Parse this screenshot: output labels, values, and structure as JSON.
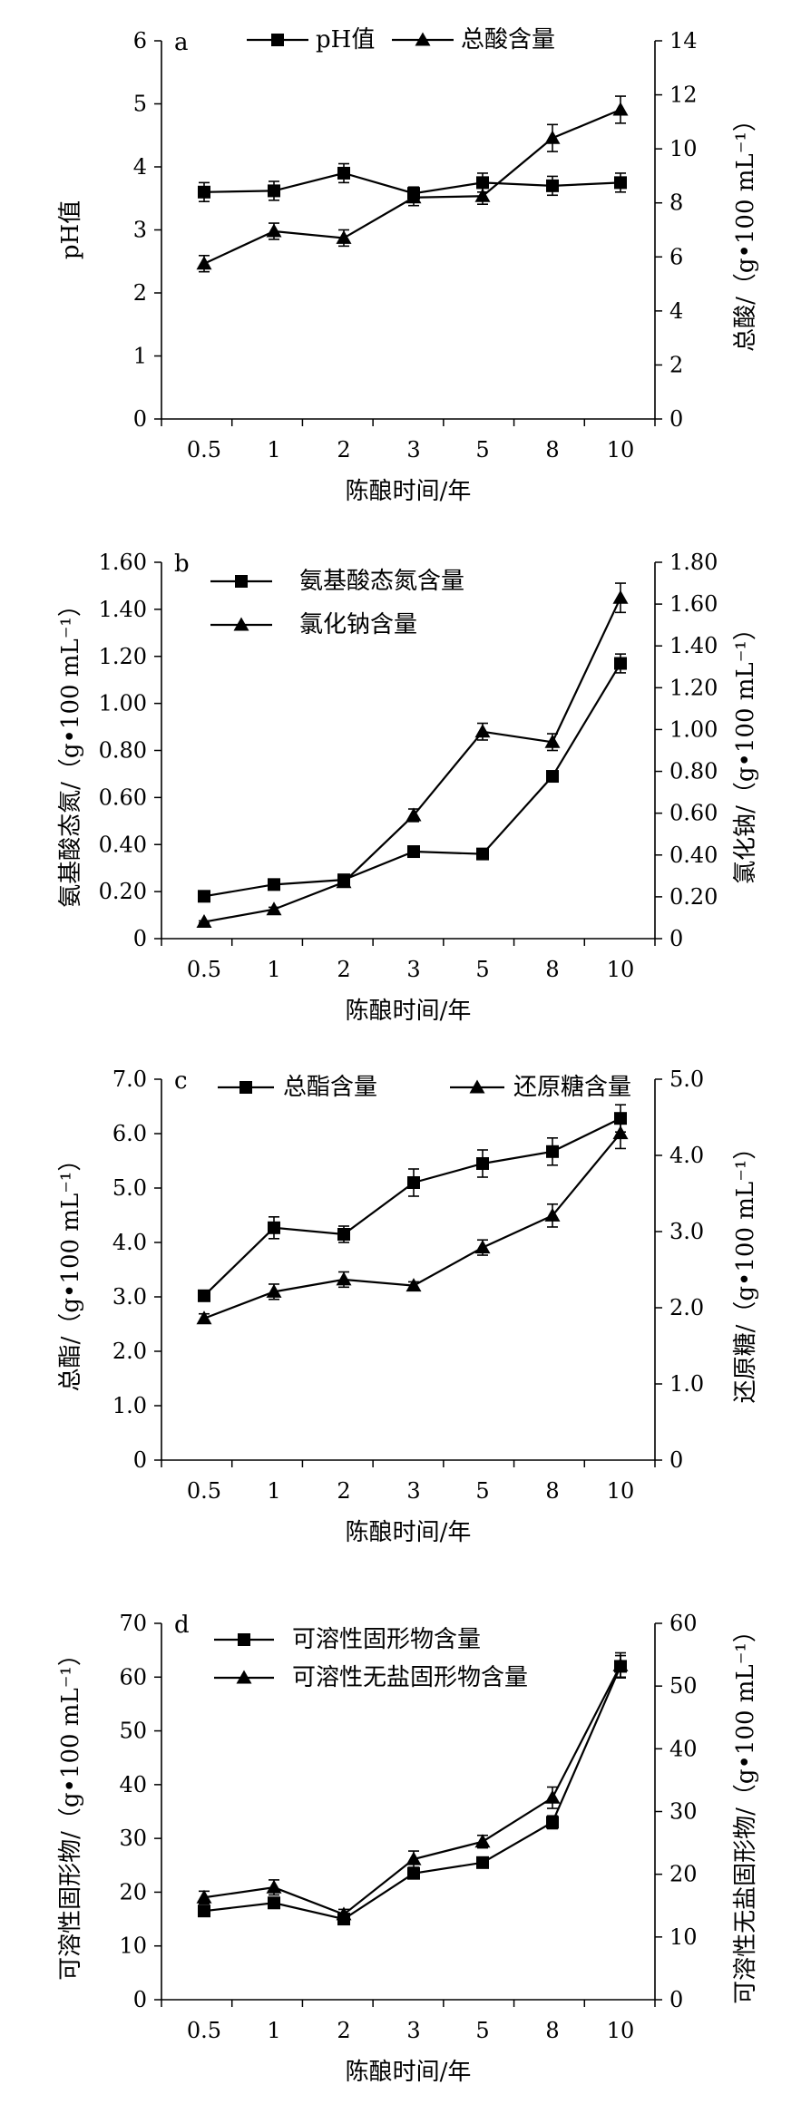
{
  "figure": {
    "panels": [
      {
        "letter": "a",
        "type": "line",
        "categories": [
          "0.5",
          "1",
          "2",
          "3",
          "5",
          "8",
          "10"
        ],
        "xlabel": "陈酿时间/年",
        "left_axis": {
          "label": "pH值",
          "ylim": [
            0,
            6
          ],
          "ticks": [
            "0",
            "1",
            "2",
            "3",
            "4",
            "5",
            "6"
          ]
        },
        "right_axis": {
          "label": "总酸/（g•100 mL⁻¹）",
          "ylim": [
            0,
            14
          ],
          "ticks": [
            "0",
            "2",
            "4",
            "6",
            "8",
            "10",
            "12",
            "14"
          ]
        },
        "legend_position": "top",
        "series": [
          {
            "name": "pH值",
            "marker": "square",
            "axis": "left",
            "values": [
              3.6,
              3.62,
              3.9,
              3.58,
              3.75,
              3.7,
              3.75
            ],
            "errors": [
              0.15,
              0.15,
              0.15,
              0.1,
              0.15,
              0.15,
              0.15
            ]
          },
          {
            "name": "总酸含量",
            "marker": "triangle",
            "axis": "right",
            "values": [
              5.75,
              6.95,
              6.7,
              8.2,
              8.25,
              10.4,
              11.45
            ],
            "errors": [
              0.3,
              0.3,
              0.3,
              0.3,
              0.3,
              0.5,
              0.5
            ]
          }
        ]
      },
      {
        "letter": "b",
        "type": "line",
        "categories": [
          "0.5",
          "1",
          "2",
          "3",
          "5",
          "8",
          "10"
        ],
        "xlabel": "陈酿时间/年",
        "left_axis": {
          "label": "氨基酸态氮/（g•100 mL⁻¹）",
          "ylim": [
            0,
            1.6
          ],
          "ticks": [
            "0",
            "0.20",
            "0.40",
            "0.60",
            "0.80",
            "1.00",
            "1.20",
            "1.40",
            "1.60"
          ]
        },
        "right_axis": {
          "label": "氯化钠/（g•100 mL⁻¹）",
          "ylim": [
            0,
            1.8
          ],
          "ticks": [
            "0",
            "0.20",
            "0.40",
            "0.60",
            "0.80",
            "1.00",
            "1.20",
            "1.40",
            "1.60",
            "1.80"
          ]
        },
        "legend_position": "top-left",
        "series": [
          {
            "name": "氨基酸态氮含量",
            "marker": "square",
            "axis": "left",
            "values": [
              0.18,
              0.23,
              0.25,
              0.37,
              0.36,
              0.69,
              1.17
            ],
            "errors": [
              0.005,
              0.005,
              0.01,
              0.01,
              0.01,
              0.015,
              0.04
            ]
          },
          {
            "name": "氯化钠含量",
            "marker": "triangle",
            "axis": "right",
            "values": [
              0.08,
              0.14,
              0.27,
              0.59,
              0.99,
              0.94,
              1.63
            ],
            "errors": [
              0.005,
              0.01,
              0.01,
              0.03,
              0.04,
              0.04,
              0.07
            ]
          }
        ]
      },
      {
        "letter": "c",
        "type": "line",
        "categories": [
          "0.5",
          "1",
          "2",
          "3",
          "5",
          "8",
          "10"
        ],
        "xlabel": "陈酿时间/年",
        "left_axis": {
          "label": "总酯/（g•100 mL⁻¹）",
          "ylim": [
            0,
            7
          ],
          "ticks": [
            "0",
            "1.0",
            "2.0",
            "3.0",
            "4.0",
            "5.0",
            "6.0",
            "7.0"
          ]
        },
        "right_axis": {
          "label": "还原糖/（g•100 mL⁻¹）",
          "ylim": [
            0,
            5
          ],
          "ticks": [
            "0",
            "1.0",
            "2.0",
            "3.0",
            "4.0",
            "5.0"
          ]
        },
        "legend_position": "top",
        "series": [
          {
            "name": "总酯含量",
            "marker": "square",
            "axis": "left",
            "values": [
              3.02,
              4.27,
              4.15,
              5.1,
              5.45,
              5.67,
              6.28
            ],
            "errors": [
              0.08,
              0.2,
              0.15,
              0.25,
              0.25,
              0.25,
              0.25
            ]
          },
          {
            "name": "还原糖含量",
            "marker": "triangle",
            "axis": "right",
            "values": [
              1.86,
              2.21,
              2.37,
              2.29,
              2.79,
              3.21,
              4.29
            ],
            "errors": [
              0.06,
              0.1,
              0.1,
              0.05,
              0.1,
              0.15,
              0.2
            ]
          }
        ]
      },
      {
        "letter": "d",
        "type": "line",
        "categories": [
          "0.5",
          "1",
          "2",
          "3",
          "5",
          "8",
          "10"
        ],
        "xlabel": "陈酿时间/年",
        "left_axis": {
          "label": "可溶性固形物/（g•100 mL⁻¹）",
          "ylim": [
            0,
            70
          ],
          "ticks": [
            "0",
            "10",
            "20",
            "30",
            "40",
            "50",
            "60",
            "70"
          ]
        },
        "right_axis": {
          "label": "可溶性无盐固形物/（g•100 mL⁻¹）",
          "ylim": [
            0,
            60
          ],
          "ticks": [
            "0",
            "10",
            "20",
            "30",
            "40",
            "50",
            "60"
          ]
        },
        "legend_position": "top-left",
        "series": [
          {
            "name": "可溶性固形物含量",
            "marker": "square",
            "axis": "left",
            "values": [
              16.5,
              18,
              15,
              23.5,
              25.5,
              33,
              62
            ],
            "errors": [
              1.0,
              1.0,
              0.7,
              1.0,
              0.8,
              1.2,
              2.0
            ]
          },
          {
            "name": "可溶性无盐固形物含量",
            "marker": "triangle",
            "axis": "right",
            "values": [
              16.3,
              17.9,
              13.6,
              22.4,
              25.2,
              32.2,
              53.3
            ],
            "errors": [
              1.0,
              1.2,
              0.8,
              1.3,
              1.0,
              1.7,
              2.0
            ]
          }
        ]
      }
    ]
  }
}
